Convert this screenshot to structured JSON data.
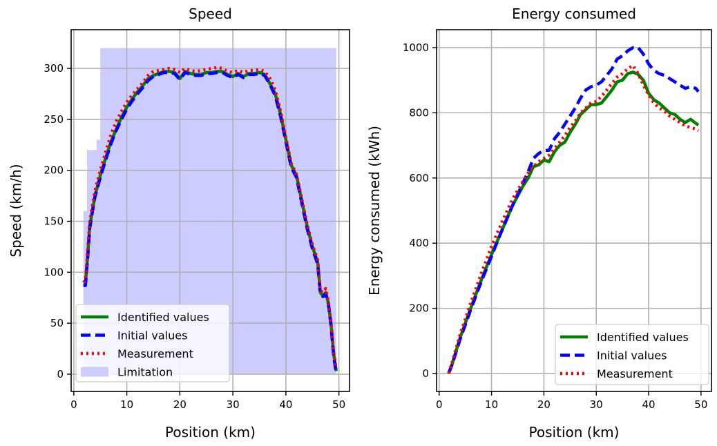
{
  "chart_data": [
    {
      "type": "line",
      "title": "Speed",
      "xlabel": "Position (km)",
      "ylabel": "Speed (km/h)",
      "xlim": [
        -0.5,
        52
      ],
      "ylim": [
        -17,
        338
      ],
      "xticks": [
        0,
        10,
        20,
        30,
        40,
        50
      ],
      "yticks": [
        0,
        50,
        100,
        150,
        200,
        250,
        300
      ],
      "grid": true,
      "legend_position": "lower-left",
      "limitation": {
        "name": "Limitation",
        "color": "#ccccff",
        "x": [
          1.8,
          1.8,
          2.5,
          2.5,
          4.3,
          4.3,
          5.0,
          5.0,
          49.5,
          49.5
        ],
        "y": [
          0,
          160,
          160,
          220,
          220,
          230,
          230,
          320,
          320,
          0
        ]
      },
      "series": [
        {
          "name": "Identified values",
          "color": "#008000",
          "style": "solid",
          "x": [
            1.8,
            2.2,
            2.6,
            3.0,
            3.5,
            4.0,
            5.0,
            6.0,
            7.0,
            8.0,
            9.0,
            10.0,
            11.0,
            12.0,
            13.0,
            14.0,
            15.0,
            16.0,
            17.0,
            18.0,
            19.0,
            20.0,
            21.0,
            22.0,
            23.0,
            24.0,
            25.0,
            26.0,
            27.0,
            28.0,
            29.0,
            30.0,
            31.0,
            32.0,
            33.0,
            34.0,
            35.0,
            36.0,
            37.0,
            38.0,
            39.0,
            40.0,
            41.0,
            42.0,
            43.0,
            44.0,
            45.0,
            46.0,
            46.5,
            47.0,
            47.5,
            48.0,
            48.5,
            49.0,
            49.5
          ],
          "y": [
            88,
            88,
            115,
            145,
            160,
            175,
            195,
            212,
            228,
            240,
            252,
            262,
            270,
            277,
            283,
            290,
            293,
            295,
            297,
            297,
            296,
            290,
            297,
            295,
            294,
            294,
            296,
            296,
            297,
            297,
            294,
            292,
            295,
            292,
            295,
            295,
            296,
            294,
            285,
            275,
            255,
            230,
            205,
            195,
            170,
            145,
            125,
            110,
            80,
            77,
            80,
            70,
            50,
            20,
            3
          ]
        },
        {
          "name": "Initial values",
          "color": "#0000ff",
          "style": "dashed",
          "x": [
            1.8,
            2.2,
            2.6,
            3.0,
            3.5,
            4.0,
            5.0,
            6.0,
            7.0,
            8.0,
            9.0,
            10.0,
            11.0,
            12.0,
            13.0,
            14.0,
            15.0,
            16.0,
            17.0,
            18.0,
            19.0,
            20.0,
            21.0,
            22.0,
            23.0,
            24.0,
            25.0,
            26.0,
            27.0,
            28.0,
            29.0,
            30.0,
            31.0,
            32.0,
            33.0,
            34.0,
            35.0,
            36.0,
            37.0,
            38.0,
            39.0,
            40.0,
            41.0,
            42.0,
            43.0,
            44.0,
            45.0,
            46.0,
            46.5,
            47.0,
            47.5,
            48.0,
            48.5,
            49.0,
            49.5
          ],
          "y": [
            87,
            87,
            113,
            143,
            159,
            174,
            193,
            210,
            226,
            239,
            250,
            260,
            268,
            275,
            281,
            288,
            292,
            294,
            296,
            296,
            295,
            289,
            296,
            294,
            293,
            293,
            295,
            295,
            296,
            296,
            293,
            291,
            294,
            291,
            294,
            294,
            295,
            293,
            284,
            273,
            253,
            228,
            203,
            193,
            168,
            143,
            123,
            108,
            79,
            76,
            79,
            69,
            48,
            18,
            0
          ]
        },
        {
          "name": "Measurement",
          "color": "#ff0000",
          "style": "dotted",
          "x": [
            1.8,
            2.2,
            2.6,
            3.0,
            3.5,
            4.0,
            5.0,
            6.0,
            7.0,
            8.0,
            9.0,
            10.0,
            11.0,
            12.0,
            13.0,
            14.0,
            15.0,
            16.0,
            17.0,
            18.0,
            19.0,
            20.0,
            21.0,
            22.0,
            23.0,
            24.0,
            25.0,
            26.0,
            27.0,
            28.0,
            29.0,
            30.0,
            31.0,
            32.0,
            33.0,
            34.0,
            35.0,
            36.0,
            37.0,
            38.0,
            39.0,
            40.0,
            41.0,
            42.0,
            43.0,
            44.0,
            45.0,
            46.0,
            46.5,
            47.0,
            47.5,
            48.0,
            48.5,
            49.0,
            49.5
          ],
          "y": [
            90,
            92,
            120,
            150,
            165,
            180,
            200,
            218,
            235,
            248,
            258,
            267,
            274,
            280,
            286,
            293,
            297,
            298,
            299,
            300,
            299,
            296,
            300,
            298,
            297,
            298,
            299,
            300,
            301,
            300,
            297,
            296,
            298,
            296,
            298,
            298,
            299,
            297,
            290,
            279,
            258,
            232,
            207,
            196,
            172,
            147,
            127,
            112,
            82,
            80,
            84,
            72,
            52,
            22,
            5
          ]
        }
      ]
    },
    {
      "type": "line",
      "title": "Energy consumed",
      "xlabel": "Position (km)",
      "ylabel": "Energy consumed (kWh)",
      "xlim": [
        -0.5,
        52
      ],
      "ylim": [
        -55,
        1055
      ],
      "xticks": [
        0,
        10,
        20,
        30,
        40,
        50
      ],
      "yticks": [
        0,
        200,
        400,
        600,
        800,
        1000
      ],
      "grid": true,
      "legend_position": "lower-right",
      "series": [
        {
          "name": "Identified values",
          "color": "#008000",
          "style": "solid",
          "x": [
            1.8,
            2.5,
            4,
            6,
            8,
            10,
            12,
            14,
            16,
            17,
            18,
            19,
            20,
            21,
            22,
            23,
            24,
            25,
            26,
            27,
            28,
            29,
            30,
            31,
            32,
            33,
            34,
            35,
            36,
            37,
            38,
            39,
            40,
            41,
            42,
            43,
            44,
            45,
            46,
            47,
            48,
            49,
            49.5
          ],
          "y": [
            0,
            30,
            110,
            200,
            285,
            365,
            440,
            515,
            575,
            600,
            635,
            640,
            655,
            650,
            680,
            700,
            710,
            740,
            765,
            795,
            810,
            825,
            825,
            830,
            850,
            870,
            895,
            900,
            920,
            925,
            918,
            900,
            860,
            840,
            830,
            815,
            800,
            795,
            780,
            770,
            780,
            768,
            762
          ]
        },
        {
          "name": "Initial values",
          "color": "#0000ff",
          "style": "dashed",
          "x": [
            1.8,
            2.5,
            4,
            6,
            8,
            10,
            12,
            14,
            16,
            17,
            18,
            19,
            20,
            21,
            22,
            23,
            24,
            25,
            26,
            27,
            28,
            29,
            30,
            31,
            32,
            33,
            34,
            35,
            36,
            37,
            38,
            39,
            40,
            41,
            42,
            43,
            44,
            45,
            46,
            47,
            48,
            49,
            49.5
          ],
          "y": [
            0,
            28,
            105,
            195,
            280,
            360,
            440,
            515,
            585,
            620,
            660,
            675,
            685,
            685,
            720,
            740,
            765,
            790,
            815,
            845,
            870,
            880,
            885,
            895,
            915,
            935,
            965,
            975,
            990,
            1000,
            1000,
            980,
            950,
            930,
            920,
            915,
            905,
            895,
            885,
            875,
            880,
            875,
            865
          ]
        },
        {
          "name": "Measurement",
          "color": "#ff0000",
          "style": "dotted",
          "x": [
            1.8,
            2.5,
            4,
            6,
            8,
            10,
            12,
            14,
            16,
            17,
            18,
            19,
            20,
            21,
            22,
            23,
            24,
            25,
            26,
            27,
            28,
            29,
            30,
            31,
            32,
            33,
            34,
            35,
            36,
            37,
            38,
            39,
            40,
            41,
            42,
            43,
            44,
            45,
            46,
            47,
            48,
            49,
            49.5
          ],
          "y": [
            0,
            35,
            120,
            215,
            305,
            390,
            465,
            535,
            590,
            615,
            635,
            650,
            660,
            670,
            690,
            710,
            730,
            755,
            775,
            800,
            815,
            830,
            835,
            850,
            870,
            890,
            910,
            920,
            935,
            945,
            920,
            885,
            855,
            830,
            815,
            805,
            790,
            780,
            770,
            760,
            755,
            750,
            745
          ]
        }
      ]
    }
  ]
}
